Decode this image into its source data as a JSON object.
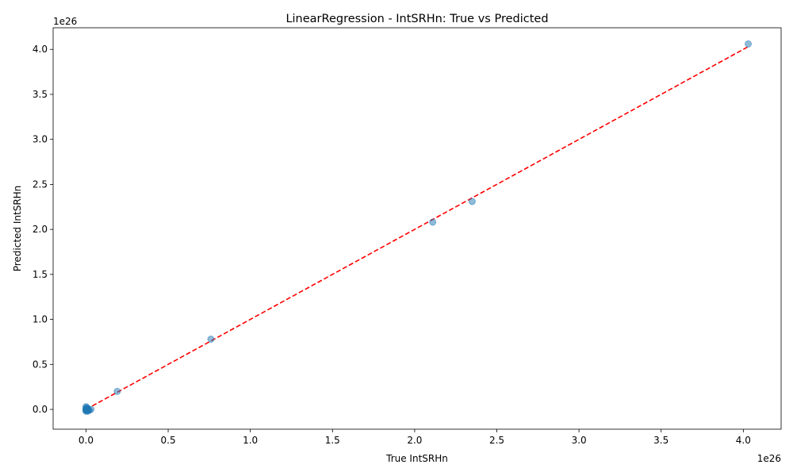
{
  "chart_data": {
    "type": "scatter",
    "title": "LinearRegression - IntSRHn: True vs Predicted",
    "xlabel": "True IntSRHn",
    "ylabel": "Predicted IntSRHn",
    "x_offset_label": "1e26",
    "y_offset_label": "1e26",
    "xlim": [
      -0.2,
      4.23
    ],
    "ylim": [
      -0.22,
      4.24
    ],
    "x_ticks": [
      0.0,
      0.5,
      1.0,
      1.5,
      2.0,
      2.5,
      3.0,
      3.5,
      4.0
    ],
    "y_ticks": [
      0.0,
      0.5,
      1.0,
      1.5,
      2.0,
      2.5,
      3.0,
      3.5,
      4.0
    ],
    "x_tick_labels": [
      "0.0",
      "0.5",
      "1.0",
      "1.5",
      "2.0",
      "2.5",
      "3.0",
      "3.5",
      "4.0"
    ],
    "y_tick_labels": [
      "0.0",
      "0.5",
      "1.0",
      "1.5",
      "2.0",
      "2.5",
      "3.0",
      "3.5",
      "4.0"
    ],
    "grid": false,
    "points": {
      "x": [
        4.03,
        2.35,
        2.11,
        0.76,
        0.19,
        0.03,
        0.01,
        0.0,
        0.0,
        0.005,
        0.01,
        0.015,
        0.0,
        0.005,
        0.01,
        0.02,
        0.0,
        0.005,
        0.01,
        0.0,
        0.0
      ],
      "y": [
        4.06,
        2.31,
        2.08,
        0.78,
        0.2,
        0.0,
        0.0,
        0.0,
        0.01,
        0.02,
        0.01,
        -0.01,
        -0.01,
        -0.01,
        -0.02,
        -0.01,
        0.0,
        0.0,
        0.0,
        0.03,
        -0.02
      ],
      "color": "#1f77b4",
      "alpha": 0.5
    },
    "reference_line": {
      "x": [
        0.0,
        4.03
      ],
      "y": [
        0.0,
        4.03
      ],
      "color": "#ff0000",
      "style": "dashed"
    }
  }
}
